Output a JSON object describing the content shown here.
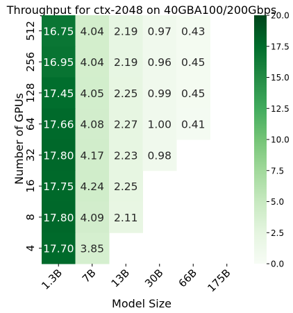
{
  "chart_data": {
    "type": "heatmap",
    "title": "Throughput  for ctx-2048 on 40GBA100/200Gbps",
    "xlabel": "Model Size",
    "ylabel": "Number of GPUs",
    "x": [
      "1.3B",
      "7B",
      "13B",
      "30B",
      "66B",
      "175B"
    ],
    "y": [
      "512",
      "256",
      "128",
      "64",
      "32",
      "16",
      "8",
      "4"
    ],
    "values": [
      [
        16.75,
        4.04,
        2.19,
        0.97,
        0.43,
        null
      ],
      [
        16.95,
        4.04,
        2.19,
        0.96,
        0.45,
        null
      ],
      [
        17.45,
        4.05,
        2.25,
        0.99,
        0.45,
        null
      ],
      [
        17.66,
        4.08,
        2.27,
        1.0,
        0.41,
        null
      ],
      [
        17.8,
        4.17,
        2.23,
        0.98,
        null,
        null
      ],
      [
        17.75,
        4.24,
        2.25,
        null,
        null,
        null
      ],
      [
        17.8,
        4.09,
        2.11,
        null,
        null,
        null
      ],
      [
        17.7,
        3.85,
        null,
        null,
        null,
        null
      ]
    ],
    "colorbar": {
      "range": [
        0,
        20
      ],
      "ticks": [
        "0.0",
        "2.5",
        "5.0",
        "7.5",
        "10.0",
        "12.5",
        "15.0",
        "17.5",
        "20.0"
      ],
      "colormap": "Greens"
    }
  }
}
